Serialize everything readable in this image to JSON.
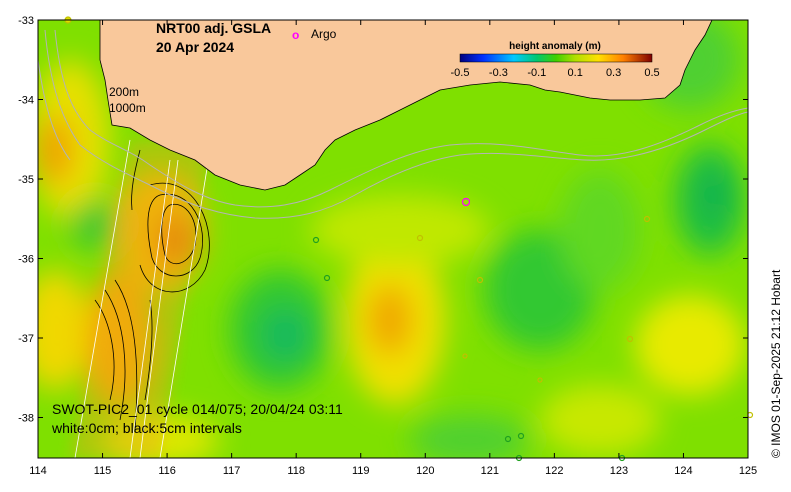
{
  "map": {
    "title_line1": "NRT00 adj. GSLA",
    "title_line2": "20 Apr 2024",
    "argo_label": "Argo",
    "argo_marker": "o",
    "isobath_labels": [
      "200m",
      "1000m"
    ],
    "swot_line1": "SWOT-PIC2_01 cycle 014/075; 20/04/24 03:11",
    "swot_line2": "white:0cm; black:5cm intervals",
    "credit": "© IMOS 01-Sep-2025 21:12 Hobart",
    "x_ticks": [
      "114",
      "115",
      "116",
      "117",
      "118",
      "119",
      "120",
      "121",
      "122",
      "123",
      "124",
      "125"
    ],
    "y_ticks": [
      "-33",
      "-34",
      "-35",
      "-36",
      "-37",
      "-38"
    ],
    "legend": {
      "title": "height anomaly (m)",
      "ticks": [
        "-0.5",
        "-0.3",
        "-0.1",
        "0.1",
        "0.3",
        "0.5"
      ]
    },
    "colors": {
      "land": "#f9c89b",
      "ocean_base": "#7fe000",
      "isobath": "#b4b4b4",
      "argo": "#ff00ff"
    }
  }
}
